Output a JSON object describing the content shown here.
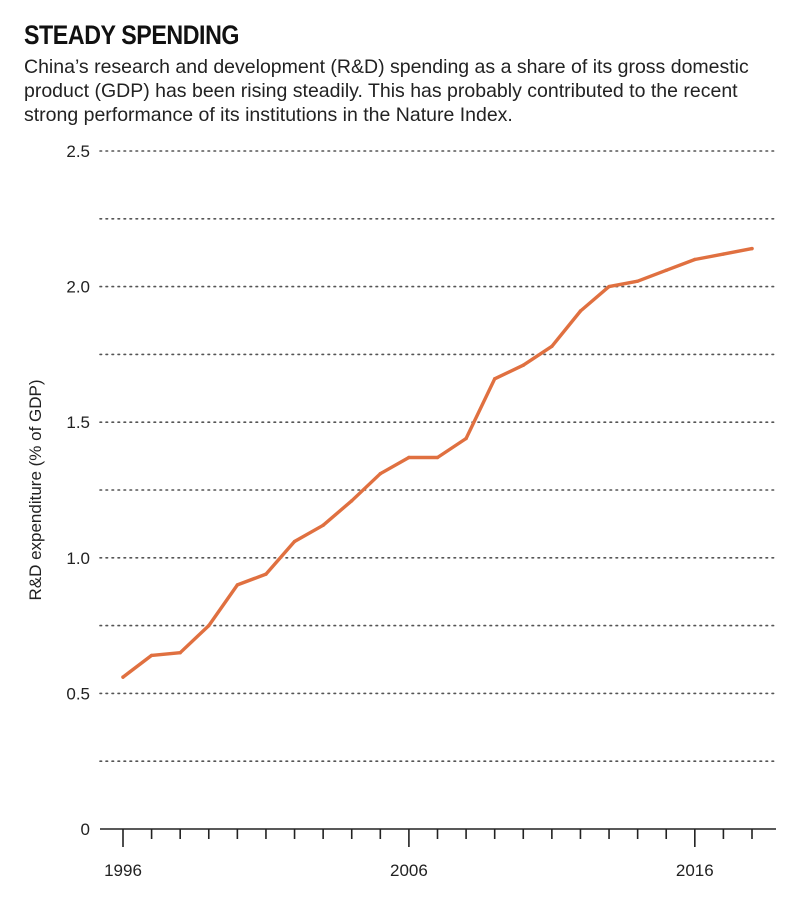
{
  "header": {
    "title": "STEADY SPENDING",
    "subtitle": "China’s research and development (R&D) spending as a share of its gross domestic product (GDP) has been rising steadily. This has probably contributed to the recent strong performance of its institutions in the Nature Index."
  },
  "chart_data": {
    "type": "line",
    "title": "STEADY SPENDING",
    "xlabel": "",
    "ylabel": "R&D expenditure (% of GDP)",
    "x": [
      1996,
      1997,
      1998,
      1999,
      2000,
      2001,
      2002,
      2003,
      2004,
      2005,
      2006,
      2007,
      2008,
      2009,
      2010,
      2011,
      2012,
      2013,
      2014,
      2015,
      2016,
      2017,
      2018
    ],
    "series": [
      {
        "name": "",
        "values": [
          0.56,
          0.64,
          0.65,
          0.75,
          0.9,
          0.94,
          1.06,
          1.12,
          1.21,
          1.31,
          1.37,
          1.37,
          1.44,
          1.66,
          1.71,
          1.78,
          1.91,
          2.0,
          2.02,
          2.06,
          2.1,
          2.12,
          2.14
        ],
        "color": "#e07040"
      }
    ],
    "xlim": [
      1996,
      2018
    ],
    "ylim": [
      0,
      2.5
    ],
    "x_ticks": [
      1996,
      1997,
      1998,
      1999,
      2000,
      2001,
      2002,
      2003,
      2004,
      2005,
      2006,
      2007,
      2008,
      2009,
      2010,
      2011,
      2012,
      2013,
      2014,
      2015,
      2016,
      2017,
      2018
    ],
    "x_tick_labels": [
      {
        "value": 1996,
        "label": "1996"
      },
      {
        "value": 2006,
        "label": "2006"
      },
      {
        "value": 2016,
        "label": "2016"
      }
    ],
    "y_ticks": [
      {
        "value": 0,
        "label": "0"
      },
      {
        "value": 0.5,
        "label": "0.5"
      },
      {
        "value": 1.0,
        "label": "1.0"
      },
      {
        "value": 1.5,
        "label": "1.5"
      },
      {
        "value": 2.0,
        "label": "2.0"
      },
      {
        "value": 2.5,
        "label": "2.5"
      }
    ],
    "minor_gridlines": [
      0.25,
      0.75,
      1.25,
      1.75,
      2.25
    ],
    "grid": true,
    "grid_style": "dotted",
    "legend": "none"
  }
}
